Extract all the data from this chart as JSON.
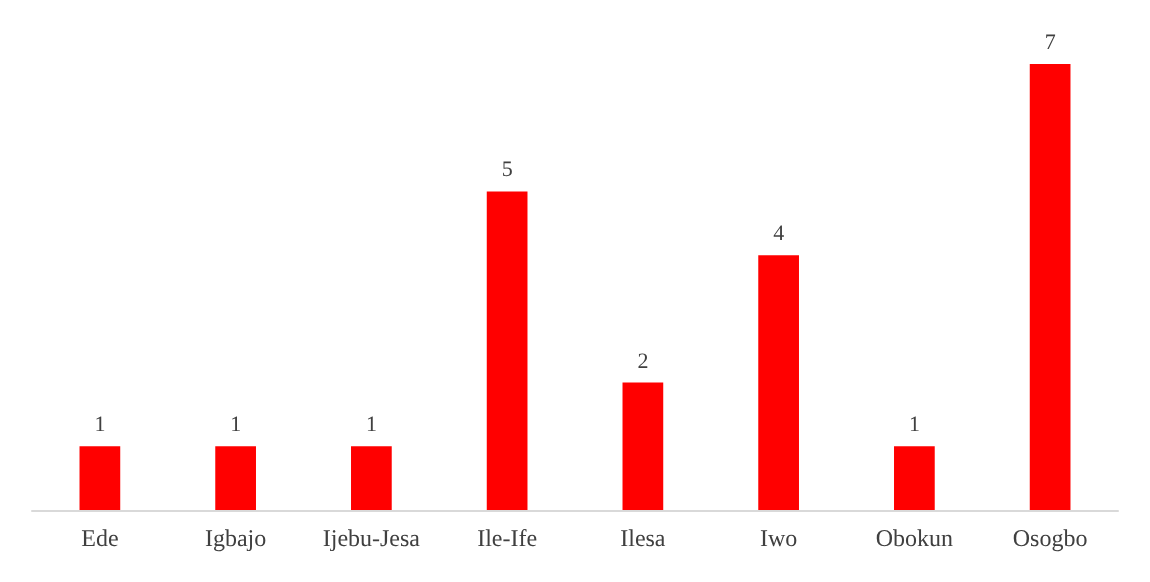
{
  "chart_data": {
    "type": "bar",
    "categories": [
      "Ede",
      "Igbajo",
      "Ijebu-Jesa",
      "Ile-Ife",
      "Ilesa",
      "Iwo",
      "Obokun",
      "Osogbo"
    ],
    "values": [
      1,
      1,
      1,
      5,
      2,
      4,
      1,
      7
    ],
    "color": "#ff0000",
    "data_labels": true
  }
}
